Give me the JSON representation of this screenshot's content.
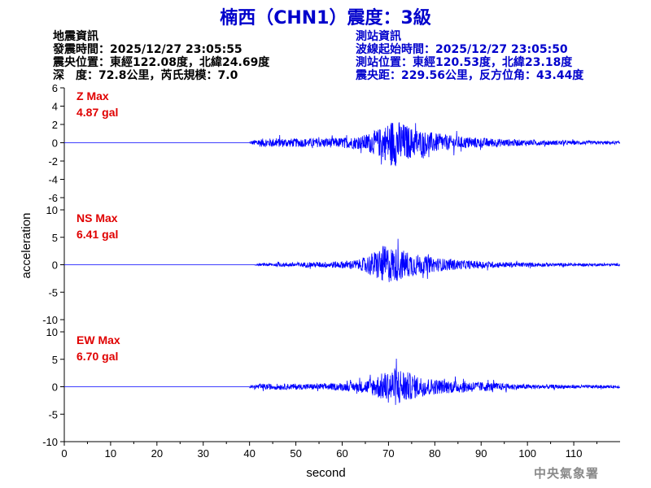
{
  "title": "楠西（CHN1）震度：3級",
  "earthquake_info": {
    "heading": "地震資訊",
    "origin_time": "發震時間：2025/12/27 23:05:55",
    "epicenter": "震央位置：東經122.08度，北緯24.69度",
    "depth_magnitude": "深　度：72.8公里，芮氏規模：7.0"
  },
  "station_info": {
    "heading": "測站資訊",
    "wave_start": "波線起始時間：2025/12/27 23:05:50",
    "location": "測站位置：東經120.53度，北緯23.18度",
    "distance": "震央距：229.56公里，反方位角：43.44度"
  },
  "watermark": "中央氣象署",
  "chart_data": {
    "type": "line",
    "xlabel": "second",
    "ylabel": "acceleration",
    "xlim": [
      0,
      120
    ],
    "xticks": [
      0,
      10,
      20,
      30,
      40,
      50,
      60,
      70,
      80,
      90,
      100,
      110
    ],
    "line_color": "#0000ff",
    "label_color": "#e00000",
    "panels": [
      {
        "name": "Z",
        "max_label": "Z Max",
        "max_value": "4.87 gal",
        "ylim": [
          -6,
          6
        ],
        "yticks": [
          -6,
          -4,
          -2,
          0,
          2,
          4,
          6
        ],
        "onset_s": 40,
        "envelope": [
          [
            40,
            0.3
          ],
          [
            42,
            0.8
          ],
          [
            45,
            0.9
          ],
          [
            50,
            0.85
          ],
          [
            55,
            0.9
          ],
          [
            60,
            1.0
          ],
          [
            64,
            1.3
          ],
          [
            67,
            2.4
          ],
          [
            69,
            3.3
          ],
          [
            71,
            4.9
          ],
          [
            73,
            4.0
          ],
          [
            75,
            3.0
          ],
          [
            78,
            2.3
          ],
          [
            82,
            1.6
          ],
          [
            86,
            1.2
          ],
          [
            90,
            1.0
          ],
          [
            95,
            0.75
          ],
          [
            100,
            0.55
          ],
          [
            110,
            0.4
          ],
          [
            120,
            0.3
          ]
        ]
      },
      {
        "name": "NS",
        "max_label": "NS Max",
        "max_value": "6.41 gal",
        "ylim": [
          -10,
          10
        ],
        "yticks": [
          -10,
          -5,
          0,
          5,
          10
        ],
        "onset_s": 41,
        "envelope": [
          [
            41,
            0.2
          ],
          [
            44,
            0.5
          ],
          [
            50,
            0.8
          ],
          [
            55,
            0.9
          ],
          [
            60,
            1.2
          ],
          [
            64,
            1.8
          ],
          [
            67,
            4.5
          ],
          [
            69,
            6.4
          ],
          [
            72,
            5.5
          ],
          [
            75,
            4.0
          ],
          [
            78,
            2.8
          ],
          [
            82,
            2.0
          ],
          [
            86,
            1.5
          ],
          [
            90,
            1.2
          ],
          [
            95,
            0.9
          ],
          [
            100,
            0.7
          ],
          [
            110,
            0.5
          ],
          [
            120,
            0.4
          ]
        ]
      },
      {
        "name": "EW",
        "max_label": "EW Max",
        "max_value": "6.70 gal",
        "ylim": [
          -10,
          10
        ],
        "yticks": [
          -10,
          -5,
          0,
          5,
          10
        ],
        "onset_s": 40,
        "envelope": [
          [
            40,
            0.3
          ],
          [
            42,
            0.9
          ],
          [
            46,
            1.0
          ],
          [
            52,
            0.95
          ],
          [
            58,
            1.1
          ],
          [
            63,
            1.6
          ],
          [
            66,
            2.6
          ],
          [
            69,
            4.8
          ],
          [
            72,
            6.7
          ],
          [
            75,
            4.2
          ],
          [
            78,
            3.0
          ],
          [
            82,
            2.2
          ],
          [
            86,
            2.0
          ],
          [
            90,
            1.6
          ],
          [
            95,
            1.1
          ],
          [
            100,
            0.8
          ],
          [
            110,
            0.6
          ],
          [
            120,
            0.45
          ]
        ]
      }
    ]
  }
}
